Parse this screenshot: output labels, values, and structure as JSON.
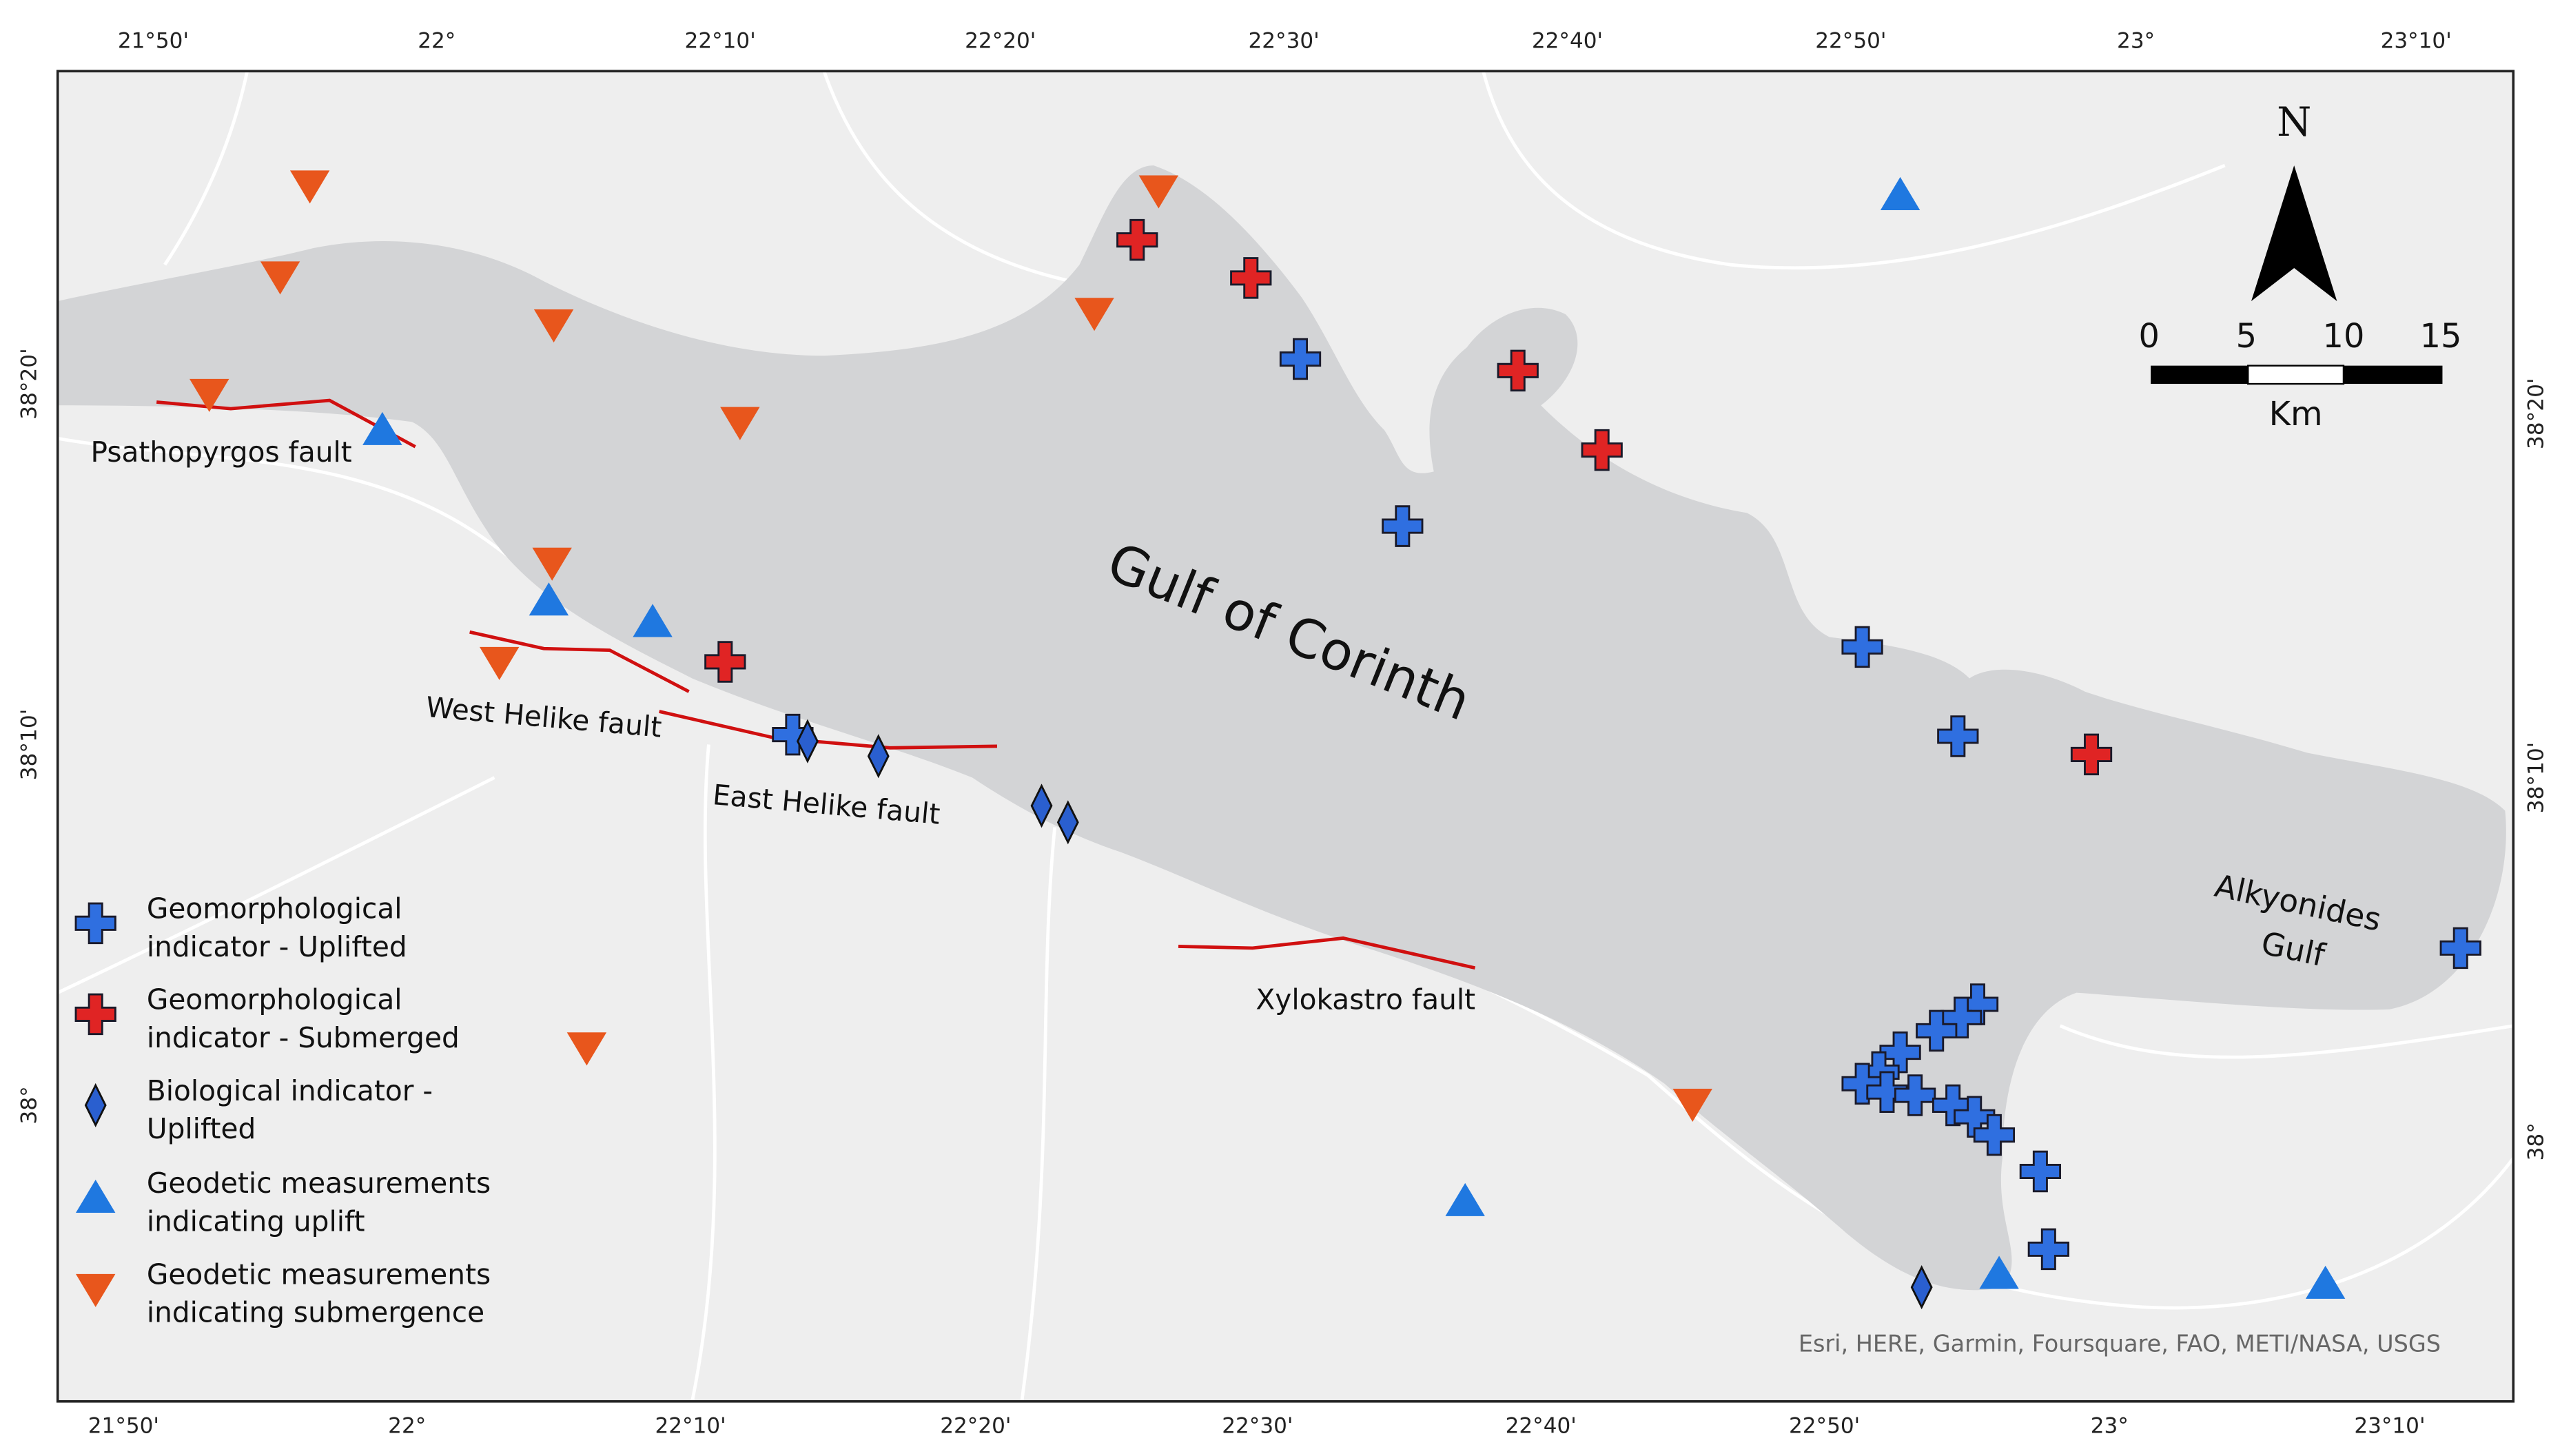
{
  "graticule": {
    "top": [
      "21°50'",
      "22°",
      "22°10'",
      "22°20'",
      "22°30'",
      "22°40'",
      "22°50'",
      "23°",
      "23°10'"
    ],
    "bottom": [
      "21°50'",
      "22°",
      "22°10'",
      "22°20'",
      "22°30'",
      "22°40'",
      "22°50'",
      "23°",
      "23°10'"
    ],
    "left": [
      "38°20'",
      "38°10'",
      "38°"
    ],
    "right": [
      "38°20'",
      "38°10'",
      "38°"
    ]
  },
  "labels": {
    "gulf": "Gulf of Corinth",
    "alkyonides": [
      "Alkyonides",
      "Gulf"
    ],
    "faults": [
      "Psathopyrgos fault",
      "West Helike fault",
      "East Helike fault",
      "Xylokastro fault"
    ]
  },
  "legend": [
    [
      "Geomorphological",
      "indicator - Uplifted"
    ],
    [
      "Geomorphological",
      "indicator - Submerged"
    ],
    [
      "Biological indicator -",
      "Uplifted"
    ],
    [
      "Geodetic measurements",
      "indicating uplift"
    ],
    [
      "Geodetic measurements",
      "indicating submergence"
    ]
  ],
  "scale_bar": {
    "north": "N",
    "ticks": [
      0,
      5,
      10,
      15
    ],
    "unit": "Km"
  },
  "attribution": "Esri, HERE, Garmin, Foursquare, FAO, METI/NASA, USGS"
}
